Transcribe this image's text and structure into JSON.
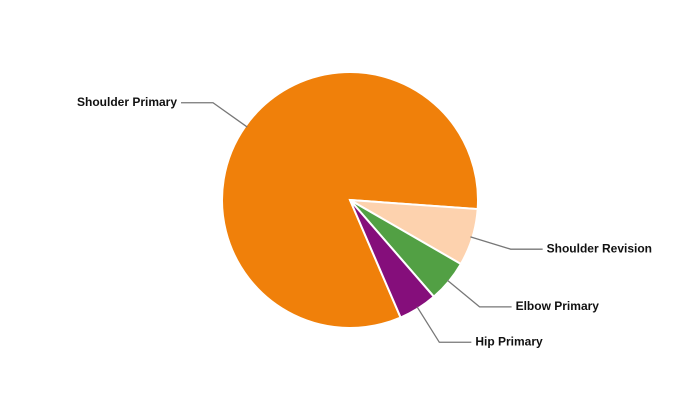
{
  "chart_data": {
    "type": "pie",
    "categories": [
      "Shoulder Primary",
      "Shoulder Revision",
      "Elbow Primary",
      "Hip Primary"
    ],
    "values": [
      82.6,
      7.2,
      5.3,
      4.9
    ],
    "colors": [
      "#f0800a",
      "#fdd2ae",
      "#52a044",
      "#850e7b"
    ]
  }
}
